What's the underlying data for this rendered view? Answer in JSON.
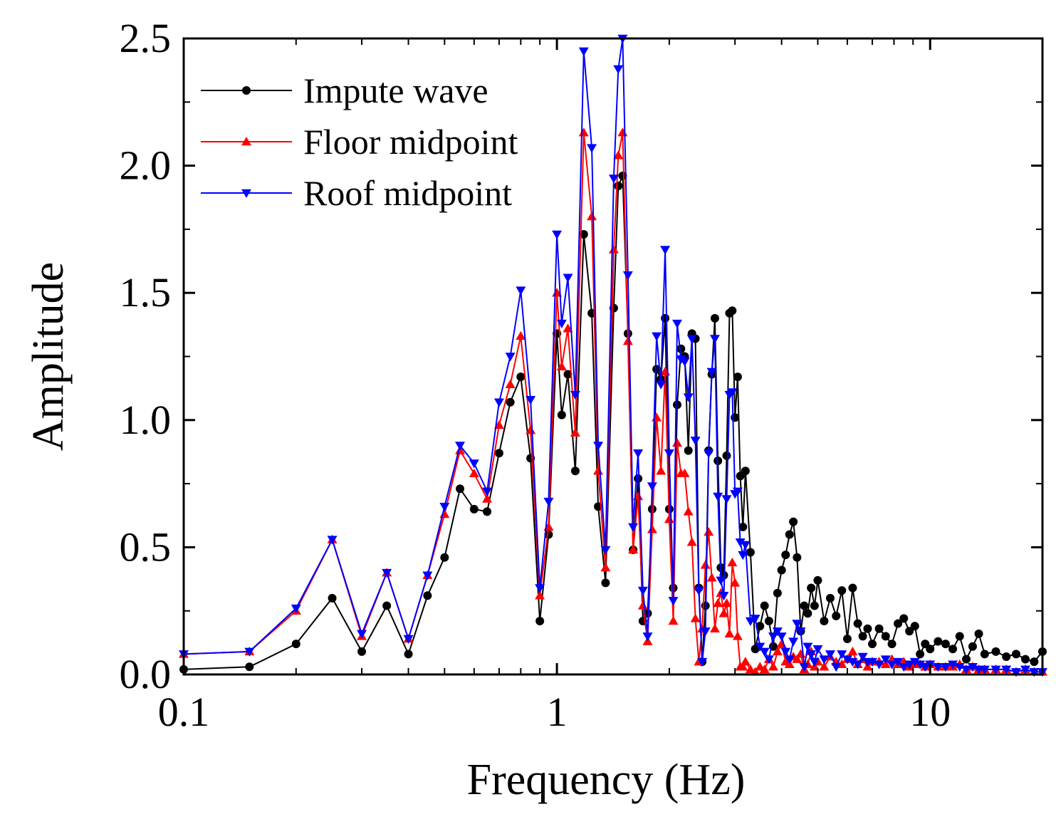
{
  "chart_data": {
    "type": "line",
    "title": "",
    "xlabel": "Frequency (Hz)",
    "ylabel": "Amplitude",
    "xscale": "log",
    "xlim": [
      0.1,
      20
    ],
    "ylim": [
      0,
      2.5
    ],
    "xticks": [
      0.1,
      1,
      10
    ],
    "xtick_labels": [
      "0.1",
      "1",
      "10"
    ],
    "yticks": [
      0,
      0.5,
      1.0,
      1.5,
      2.0,
      2.5
    ],
    "ytick_labels": [
      "0.0",
      "0.5",
      "1.0",
      "1.5",
      "2.0",
      "2.5"
    ],
    "legend_position": "top-left",
    "grid": false,
    "series": [
      {
        "name": "Impute wave",
        "color": "#000000",
        "marker": "circle",
        "x": [
          0.1,
          0.15,
          0.2,
          0.25,
          0.3,
          0.35,
          0.4,
          0.45,
          0.5,
          0.55,
          0.6,
          0.65,
          0.7,
          0.75,
          0.8,
          0.85,
          0.9,
          0.95,
          1.0,
          1.03,
          1.07,
          1.12,
          1.18,
          1.24,
          1.29,
          1.35,
          1.42,
          1.46,
          1.5,
          1.55,
          1.6,
          1.65,
          1.7,
          1.75,
          1.8,
          1.85,
          1.9,
          1.95,
          2.0,
          2.05,
          2.1,
          2.15,
          2.2,
          2.25,
          2.3,
          2.35,
          2.4,
          2.45,
          2.5,
          2.55,
          2.6,
          2.65,
          2.7,
          2.75,
          2.8,
          2.85,
          2.9,
          2.95,
          3.0,
          3.05,
          3.1,
          3.15,
          3.2,
          3.3,
          3.4,
          3.5,
          3.6,
          3.7,
          3.8,
          3.9,
          4.0,
          4.1,
          4.2,
          4.3,
          4.4,
          4.5,
          4.6,
          4.7,
          4.8,
          4.9,
          5.0,
          5.2,
          5.4,
          5.6,
          5.8,
          6.0,
          6.2,
          6.4,
          6.6,
          6.8,
          7.0,
          7.3,
          7.6,
          7.9,
          8.2,
          8.5,
          8.8,
          9.1,
          9.4,
          9.7,
          10.0,
          10.5,
          11.0,
          11.5,
          12.0,
          12.5,
          13.0,
          13.5,
          14.0,
          15.0,
          16.0,
          17.0,
          18.0,
          19.0,
          20.0
        ],
        "y": [
          0.02,
          0.03,
          0.12,
          0.3,
          0.09,
          0.27,
          0.08,
          0.31,
          0.46,
          0.73,
          0.65,
          0.64,
          0.87,
          1.07,
          1.17,
          0.85,
          0.21,
          0.55,
          1.34,
          1.02,
          1.18,
          0.8,
          1.73,
          1.42,
          0.66,
          0.36,
          1.44,
          1.92,
          1.96,
          1.34,
          0.49,
          0.77,
          0.21,
          0.24,
          0.65,
          1.2,
          1.16,
          1.4,
          0.65,
          0.34,
          1.06,
          1.28,
          1.25,
          0.88,
          1.34,
          1.32,
          0.34,
          0.05,
          0.27,
          0.88,
          1.18,
          1.4,
          0.84,
          0.42,
          0.39,
          0.86,
          1.42,
          1.43,
          1.01,
          1.17,
          0.78,
          0.58,
          0.8,
          0.48,
          0.1,
          0.19,
          0.27,
          0.21,
          0.11,
          0.32,
          0.41,
          0.47,
          0.55,
          0.6,
          0.46,
          0.17,
          0.27,
          0.24,
          0.34,
          0.27,
          0.37,
          0.21,
          0.3,
          0.23,
          0.33,
          0.14,
          0.34,
          0.2,
          0.15,
          0.18,
          0.12,
          0.18,
          0.15,
          0.12,
          0.2,
          0.22,
          0.17,
          0.19,
          0.08,
          0.12,
          0.1,
          0.13,
          0.12,
          0.1,
          0.15,
          0.06,
          0.11,
          0.16,
          0.08,
          0.09,
          0.07,
          0.08,
          0.06,
          0.05,
          0.09
        ]
      },
      {
        "name": "Floor midpoint",
        "color": "#ff0000",
        "marker": "triangle-up",
        "x": [
          0.1,
          0.15,
          0.2,
          0.25,
          0.3,
          0.35,
          0.4,
          0.45,
          0.5,
          0.55,
          0.6,
          0.65,
          0.7,
          0.75,
          0.8,
          0.85,
          0.9,
          0.95,
          1.0,
          1.03,
          1.07,
          1.12,
          1.18,
          1.24,
          1.29,
          1.35,
          1.42,
          1.46,
          1.5,
          1.55,
          1.6,
          1.65,
          1.7,
          1.75,
          1.8,
          1.85,
          1.9,
          1.95,
          2.0,
          2.05,
          2.1,
          2.15,
          2.2,
          2.25,
          2.3,
          2.35,
          2.4,
          2.45,
          2.5,
          2.55,
          2.6,
          2.65,
          2.7,
          2.75,
          2.8,
          2.85,
          2.9,
          2.95,
          3.0,
          3.05,
          3.1,
          3.15,
          3.2,
          3.3,
          3.4,
          3.5,
          3.6,
          3.7,
          3.8,
          3.9,
          4.0,
          4.1,
          4.2,
          4.3,
          4.4,
          4.5,
          4.6,
          4.7,
          4.8,
          4.9,
          5.0,
          5.2,
          5.4,
          5.6,
          5.8,
          6.0,
          6.2,
          6.4,
          6.6,
          6.8,
          7.0,
          7.3,
          7.6,
          7.9,
          8.2,
          8.5,
          8.8,
          9.1,
          9.4,
          9.7,
          10.0,
          10.5,
          11.0,
          11.5,
          12.0,
          12.5,
          13.0,
          13.5,
          14.0,
          15.0,
          16.0,
          17.0,
          18.0,
          19.0,
          20.0
        ],
        "y": [
          0.08,
          0.09,
          0.25,
          0.53,
          0.15,
          0.4,
          0.14,
          0.39,
          0.63,
          0.88,
          0.79,
          0.69,
          0.98,
          1.14,
          1.33,
          0.96,
          0.31,
          0.58,
          1.5,
          1.21,
          1.36,
          0.95,
          2.13,
          1.8,
          0.8,
          0.42,
          1.67,
          2.04,
          2.13,
          1.31,
          0.49,
          0.7,
          0.27,
          0.13,
          0.57,
          1.01,
          0.8,
          1.19,
          0.61,
          0.21,
          0.91,
          0.79,
          0.79,
          0.64,
          0.52,
          0.22,
          0.05,
          0.18,
          0.43,
          0.56,
          0.38,
          0.18,
          0.28,
          0.32,
          0.24,
          0.28,
          0.16,
          0.44,
          0.36,
          0.15,
          0.03,
          0.03,
          0.05,
          0.02,
          0.01,
          0.03,
          0.02,
          0.06,
          0.03,
          0.09,
          0.12,
          0.05,
          0.04,
          0.07,
          0.06,
          0.08,
          0.02,
          0.04,
          0.09,
          0.03,
          0.05,
          0.03,
          0.07,
          0.05,
          0.04,
          0.06,
          0.09,
          0.04,
          0.06,
          0.03,
          0.05,
          0.05,
          0.04,
          0.06,
          0.04,
          0.05,
          0.03,
          0.04,
          0.04,
          0.03,
          0.04,
          0.03,
          0.03,
          0.03,
          0.04,
          0.02,
          0.03,
          0.02,
          0.02,
          0.02,
          0.02,
          0.01,
          0.02,
          0.01,
          0.01
        ]
      },
      {
        "name": "Roof midpoint",
        "color": "#0000ff",
        "marker": "triangle-down",
        "x": [
          0.1,
          0.15,
          0.2,
          0.25,
          0.3,
          0.35,
          0.4,
          0.45,
          0.5,
          0.55,
          0.6,
          0.65,
          0.7,
          0.75,
          0.8,
          0.85,
          0.9,
          0.95,
          1.0,
          1.03,
          1.07,
          1.12,
          1.18,
          1.24,
          1.29,
          1.35,
          1.42,
          1.46,
          1.5,
          1.55,
          1.6,
          1.65,
          1.7,
          1.75,
          1.8,
          1.85,
          1.9,
          1.95,
          2.0,
          2.05,
          2.1,
          2.15,
          2.2,
          2.25,
          2.3,
          2.35,
          2.4,
          2.45,
          2.5,
          2.55,
          2.6,
          2.65,
          2.7,
          2.75,
          2.8,
          2.85,
          2.9,
          2.95,
          3.0,
          3.05,
          3.1,
          3.15,
          3.2,
          3.3,
          3.4,
          3.5,
          3.6,
          3.7,
          3.8,
          3.9,
          4.0,
          4.1,
          4.2,
          4.3,
          4.4,
          4.5,
          4.6,
          4.7,
          4.8,
          4.9,
          5.0,
          5.2,
          5.4,
          5.6,
          5.8,
          6.0,
          6.2,
          6.4,
          6.6,
          6.8,
          7.0,
          7.3,
          7.6,
          7.9,
          8.2,
          8.5,
          8.8,
          9.1,
          9.4,
          9.7,
          10.0,
          10.5,
          11.0,
          11.5,
          12.0,
          12.5,
          13.0,
          13.5,
          14.0,
          15.0,
          16.0,
          17.0,
          18.0,
          19.0,
          20.0
        ],
        "y": [
          0.08,
          0.09,
          0.26,
          0.53,
          0.16,
          0.4,
          0.14,
          0.39,
          0.66,
          0.9,
          0.83,
          0.72,
          1.07,
          1.25,
          1.51,
          1.08,
          0.34,
          0.68,
          1.73,
          1.38,
          1.56,
          1.1,
          2.45,
          2.07,
          0.9,
          0.49,
          1.95,
          2.38,
          2.5,
          1.57,
          0.58,
          0.87,
          0.33,
          0.15,
          0.74,
          1.33,
          1.14,
          1.67,
          0.87,
          0.29,
          1.38,
          1.24,
          1.23,
          1.09,
          1.32,
          0.92,
          0.33,
          0.05,
          0.17,
          0.87,
          1.19,
          1.32,
          0.7,
          0.37,
          0.31,
          0.69,
          1.1,
          1.11,
          0.71,
          0.72,
          0.52,
          0.47,
          0.51,
          0.21,
          0.22,
          0.11,
          0.09,
          0.06,
          0.15,
          0.17,
          0.15,
          0.09,
          0.06,
          0.13,
          0.2,
          0.17,
          0.03,
          0.11,
          0.08,
          0.05,
          0.1,
          0.06,
          0.08,
          0.03,
          0.08,
          0.06,
          0.05,
          0.04,
          0.07,
          0.05,
          0.05,
          0.04,
          0.06,
          0.04,
          0.05,
          0.03,
          0.04,
          0.05,
          0.04,
          0.03,
          0.04,
          0.03,
          0.03,
          0.04,
          0.03,
          0.02,
          0.03,
          0.02,
          0.02,
          0.02,
          0.02,
          0.01,
          0.02,
          0.01,
          0.01
        ]
      }
    ]
  }
}
